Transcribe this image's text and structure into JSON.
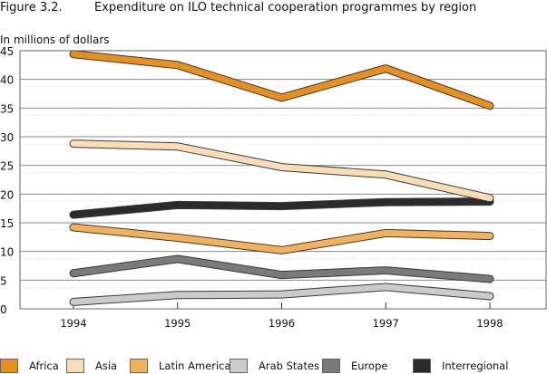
{
  "figure": {
    "number": "Figure 3.2.",
    "title": "Expenditure on ILO technical cooperation programmes by region"
  },
  "chart_data": {
    "type": "line",
    "title": "Expenditure on ILO technical cooperation programmes by region",
    "ylabel": "In millions of dollars",
    "xlabel": "",
    "x": [
      "1994",
      "1995",
      "1996",
      "1997",
      "1998"
    ],
    "ylim": [
      0,
      45
    ],
    "yticks": [
      0,
      5,
      10,
      15,
      20,
      25,
      30,
      35,
      40,
      45
    ],
    "grid": true,
    "legend_position": "bottom",
    "series": [
      {
        "name": "Africa",
        "color": "#E8901F",
        "values": [
          44.4,
          42.5,
          36.8,
          41.9,
          35.4
        ]
      },
      {
        "name": "Asia",
        "color": "#F8DDB6",
        "values": [
          28.8,
          28.3,
          24.7,
          23.4,
          19.3
        ]
      },
      {
        "name": "Latin America",
        "color": "#F2B25C",
        "values": [
          14.2,
          12.4,
          10.2,
          13.2,
          12.7
        ]
      },
      {
        "name": "Arab States",
        "color": "#CBCBCB",
        "values": [
          1.2,
          2.4,
          2.5,
          3.8,
          2.2
        ]
      },
      {
        "name": "Europe",
        "color": "#7A7A7A",
        "values": [
          6.2,
          8.7,
          5.9,
          6.7,
          5.2
        ]
      },
      {
        "name": "Interregional",
        "color": "#2B2B2B",
        "values": [
          16.4,
          18.1,
          17.9,
          18.6,
          18.7
        ]
      }
    ]
  }
}
